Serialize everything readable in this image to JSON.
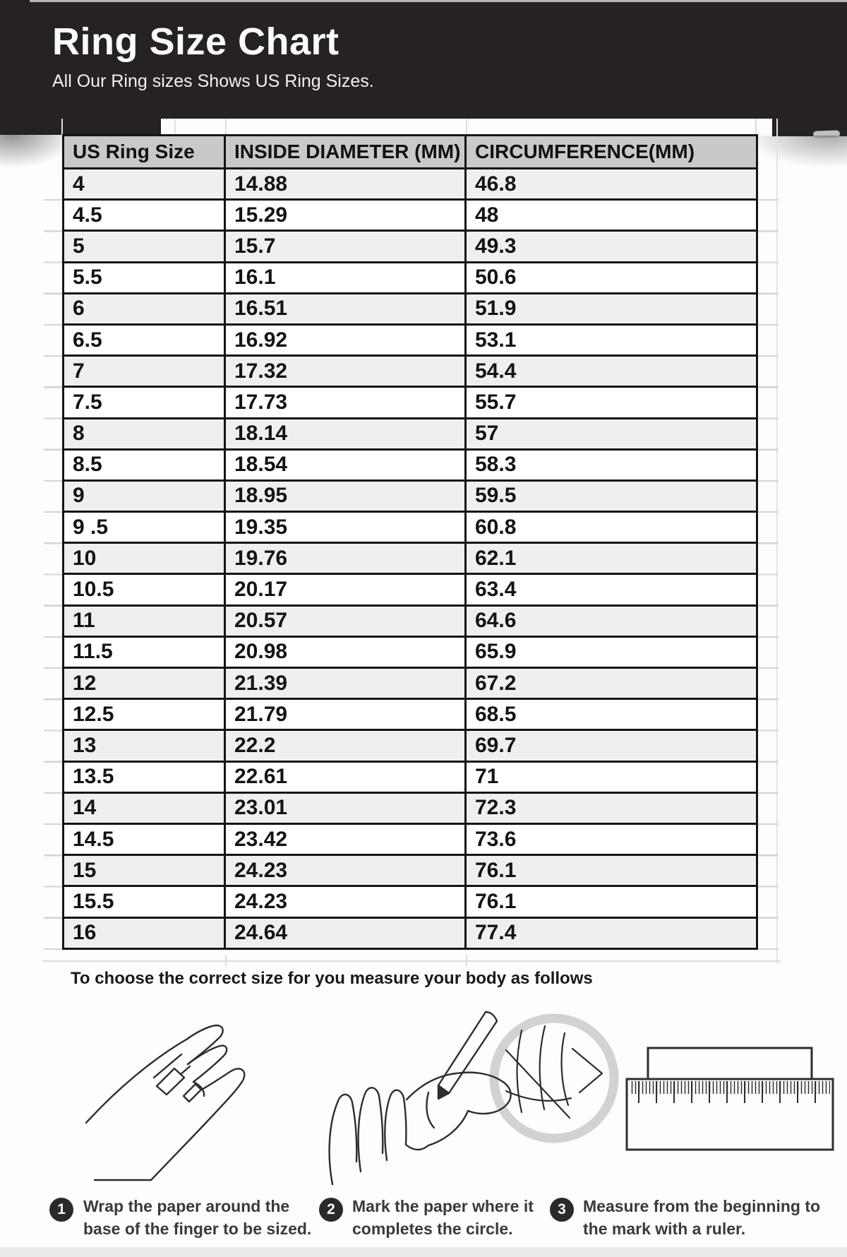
{
  "header": {
    "title": "Ring Size Chart",
    "subtitle": "All Our Ring sizes Shows US Ring Sizes."
  },
  "table": {
    "columns": [
      "US Ring Size",
      "INSIDE DIAMETER (MM)",
      "CIRCUMFERENCE(MM)"
    ],
    "rows": [
      [
        "4",
        "14.88",
        "46.8"
      ],
      [
        "4.5",
        "15.29",
        "48"
      ],
      [
        "5",
        "15.7",
        "49.3"
      ],
      [
        "5.5",
        "16.1",
        "50.6"
      ],
      [
        "6",
        "16.51",
        "51.9"
      ],
      [
        "6.5",
        "16.92",
        "53.1"
      ],
      [
        "7",
        "17.32",
        "54.4"
      ],
      [
        "7.5",
        "17.73",
        "55.7"
      ],
      [
        "8",
        "18.14",
        "57"
      ],
      [
        "8.5",
        "18.54",
        "58.3"
      ],
      [
        "9",
        "18.95",
        "59.5"
      ],
      [
        "9 .5",
        "19.35",
        "60.8"
      ],
      [
        "10",
        "19.76",
        "62.1"
      ],
      [
        "10.5",
        "20.17",
        "63.4"
      ],
      [
        "11",
        "20.57",
        "64.6"
      ],
      [
        "11.5",
        "20.98",
        "65.9"
      ],
      [
        "12",
        "21.39",
        "67.2"
      ],
      [
        "12.5",
        "21.79",
        "68.5"
      ],
      [
        "13",
        "22.2",
        "69.7"
      ],
      [
        "13.5",
        "22.61",
        "71"
      ],
      [
        "14",
        "23.01",
        "72.3"
      ],
      [
        "14.5",
        "23.42",
        "73.6"
      ],
      [
        "15",
        "24.23",
        "76.1"
      ],
      [
        "15.5",
        "24.23",
        "76.1"
      ],
      [
        "16",
        "24.64",
        "77.4"
      ]
    ]
  },
  "instructions": {
    "intro": "To choose the correct size for you measure your body as follows",
    "steps": [
      {
        "number": "1",
        "text": "Wrap the paper around the base of the finger to be sized.",
        "illustration": "hand-with-paper-wrapped"
      },
      {
        "number": "2",
        "text": "Mark the paper where it completes the circle.",
        "illustration": "hand-marking-with-pencil"
      },
      {
        "number": "3",
        "text": "Measure from the beginning to the mark with a ruler.",
        "illustration": "ruler-with-paper-strip"
      }
    ]
  },
  "colors": {
    "banner": "#262223",
    "table_header_bg": "#c9c9c9",
    "row_alt_bg": "#efeff0",
    "table_border": "#151515",
    "step_badge": "#2b292a",
    "step_text": "#3a3a3a",
    "magnifier_ring": "#d2d2d2"
  }
}
